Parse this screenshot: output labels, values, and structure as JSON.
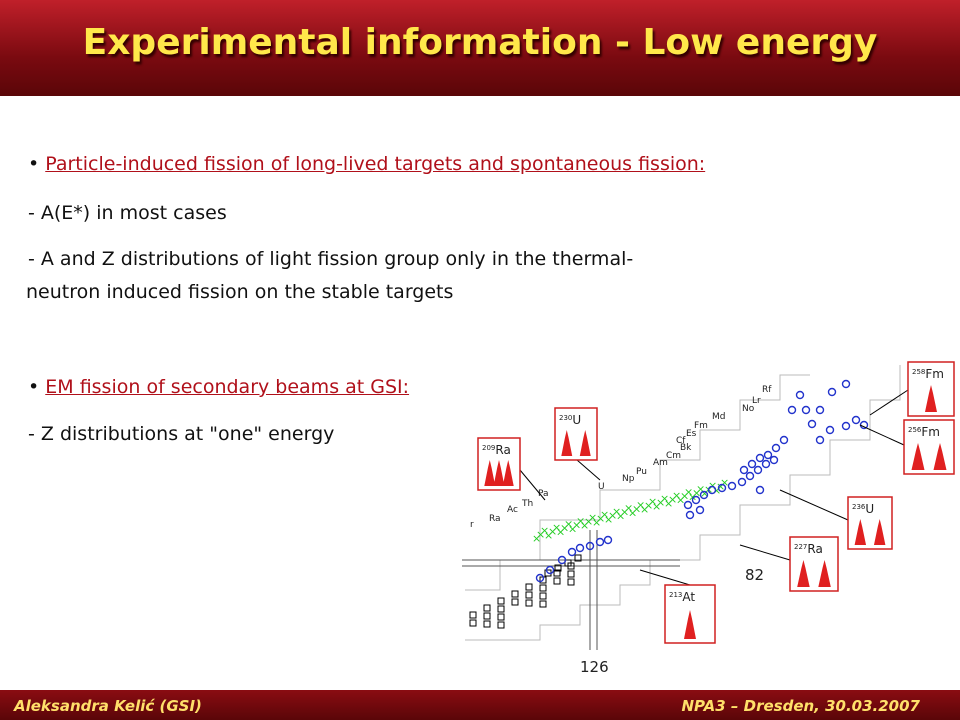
{
  "header": {
    "title": "Experimental information - Low energy"
  },
  "body": {
    "bullets": [
      {
        "heading": "Particle-induced fission of long-lived targets and spontaneous fission:",
        "lines": [
          "- A(E*) in most cases",
          "- A and Z distributions of light fission group only in the thermal-",
          "neutron induced fission on the stable targets"
        ]
      },
      {
        "heading": "EM fission of secondary beams at GSI:",
        "lines": [
          "- Z distributions at \"one\" energy"
        ]
      }
    ]
  },
  "figure": {
    "elements": [
      "Rf",
      "Lr",
      "No",
      "Md",
      "Fm",
      "Es",
      "Cf",
      "Bk",
      "Cm",
      "Am",
      "Pu",
      "Np",
      "U",
      "Pa",
      "Th",
      "Ac",
      "Ra",
      "r"
    ],
    "magic_numbers": [
      "82",
      "126"
    ],
    "insets": [
      {
        "mass": "230",
        "element": "U"
      },
      {
        "mass": "209",
        "element": "Ra"
      },
      {
        "mass": "258",
        "element": "Fm"
      },
      {
        "mass": "256",
        "element": "Fm"
      },
      {
        "mass": "236",
        "element": "U"
      },
      {
        "mass": "227",
        "element": "Ra"
      },
      {
        "mass": "213",
        "element": "At"
      }
    ]
  },
  "footer": {
    "author": "Aleksandra Kelić (GSI)",
    "event": "NPA3 – Dresden, 30.03.2007"
  }
}
